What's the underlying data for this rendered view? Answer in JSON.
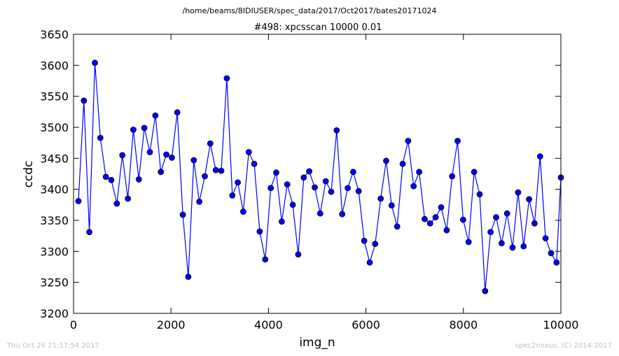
{
  "chart_data": {
    "type": "line",
    "supertitle": "/home/beams/8IDIUSER/spec_data/2017/Oct2017/bates20171024",
    "title": "#498: xpcsscan 10000 0.01",
    "xlabel": "img_n",
    "ylabel": "ccdc",
    "xlim": [
      0,
      10000
    ],
    "ylim": [
      3200,
      3650
    ],
    "xticks": [
      0,
      2000,
      4000,
      6000,
      8000,
      10000
    ],
    "yticks": [
      3200,
      3250,
      3300,
      3350,
      3400,
      3450,
      3500,
      3550,
      3600,
      3650
    ],
    "grid": false,
    "marker": "circle",
    "color": "#0000ff",
    "series": [
      {
        "x": [
          100,
          212,
          325,
          438,
          551,
          664,
          776,
          889,
          1002,
          1115,
          1227,
          1340,
          1453,
          1566,
          1679,
          1791,
          1904,
          2017,
          2130,
          2243,
          2355,
          2468,
          2581,
          2694,
          2806,
          2919,
          3032,
          3145,
          3258,
          3370,
          3483,
          3596,
          3709,
          3821,
          3934,
          4047,
          4160,
          4273,
          4385,
          4498,
          4611,
          4724,
          4836,
          4949,
          5062,
          5175,
          5288,
          5400,
          5513,
          5626,
          5739,
          5851,
          5964,
          6077,
          6190,
          6303,
          6415,
          6528,
          6641,
          6754,
          6866,
          6979,
          7092,
          7205,
          7318,
          7430,
          7543,
          7656,
          7769,
          7881,
          7994,
          8107,
          8220,
          8333,
          8445,
          8558,
          8671,
          8784,
          8896,
          9009,
          9122,
          9235,
          9348,
          9460,
          9573,
          9686,
          9799,
          9911,
          10000
        ],
        "y": [
          3381,
          3543,
          3331,
          3604,
          3483,
          3420,
          3415,
          3377,
          3455,
          3385,
          3496,
          3416,
          3499,
          3460,
          3519,
          3428,
          3456,
          3451,
          3524,
          3359,
          3259,
          3447,
          3380,
          3421,
          3474,
          3431,
          3430,
          3579,
          3390,
          3411,
          3364,
          3460,
          3441,
          3332,
          3287,
          3402,
          3427,
          3348,
          3408,
          3375,
          3295,
          3419,
          3429,
          3403,
          3361,
          3413,
          3396,
          3495,
          3360,
          3402,
          3428,
          3397,
          3317,
          3282,
          3312,
          3385,
          3446,
          3374,
          3340,
          3441,
          3478,
          3405,
          3428,
          3352,
          3345,
          3355,
          3371,
          3334,
          3421,
          3478,
          3351,
          3315,
          3428,
          3392,
          3236,
          3331,
          3355,
          3313,
          3361,
          3306,
          3395,
          3308,
          3384,
          3345,
          3453,
          3321,
          3297,
          3282,
          3419
        ]
      }
    ]
  },
  "footer": {
    "timestamp": "Thu Oct 26 21:17:54 2017",
    "credit": "spec2nexus, (C) 2014-2017"
  }
}
